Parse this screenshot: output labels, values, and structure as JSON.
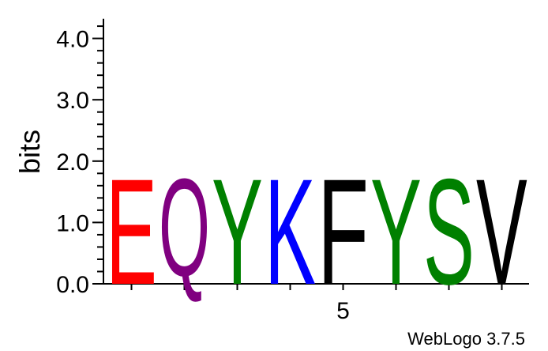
{
  "chart_data": {
    "type": "sequence-logo",
    "ylabel": "bits",
    "ylim": [
      0,
      4.32
    ],
    "y_ticks": [
      "0.0",
      "1.0",
      "2.0",
      "3.0",
      "4.0"
    ],
    "x_ticks": [
      {
        "position": 5,
        "label": "5"
      }
    ],
    "positions": [
      {
        "position": 1,
        "letter": "E",
        "bits": 1.77,
        "color": "#ff0000"
      },
      {
        "position": 2,
        "letter": "Q",
        "bits": 1.77,
        "color": "#800080"
      },
      {
        "position": 3,
        "letter": "Y",
        "bits": 1.77,
        "color": "#008000"
      },
      {
        "position": 4,
        "letter": "K",
        "bits": 1.77,
        "color": "#0000ff"
      },
      {
        "position": 5,
        "letter": "F",
        "bits": 1.77,
        "color": "#000000"
      },
      {
        "position": 6,
        "letter": "Y",
        "bits": 1.77,
        "color": "#008000"
      },
      {
        "position": 7,
        "letter": "S",
        "bits": 1.77,
        "color": "#008000"
      },
      {
        "position": 8,
        "letter": "V",
        "bits": 1.77,
        "color": "#000000"
      }
    ],
    "grid": false
  },
  "credit": "WebLogo 3.7.5"
}
